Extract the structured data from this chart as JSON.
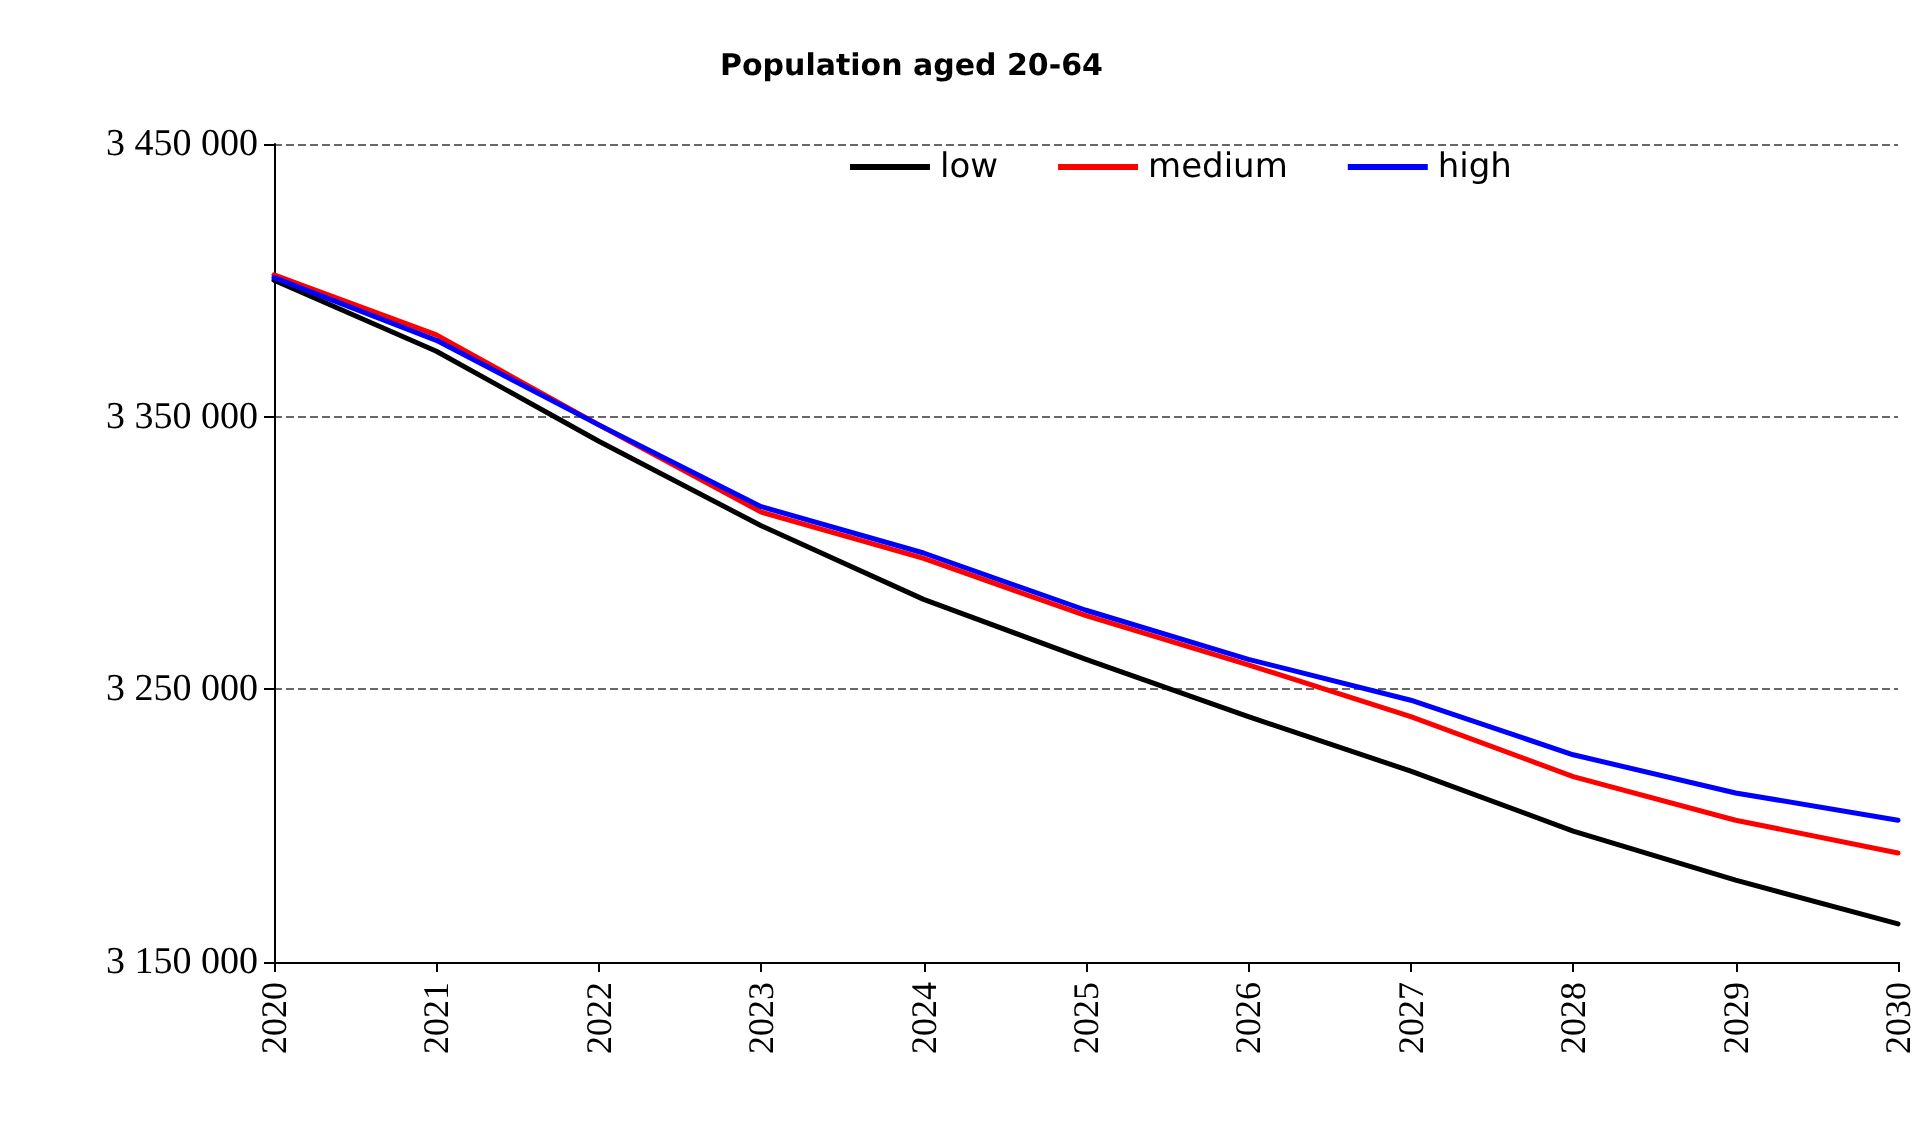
{
  "chart_data": {
    "type": "line",
    "title": "Population aged 20-64",
    "categories": [
      "2020",
      "2021",
      "2022",
      "2023",
      "2024",
      "2025",
      "2026",
      "2027",
      "2028",
      "2029",
      "2030"
    ],
    "series": [
      {
        "name": "low",
        "color": "#000000",
        "values": [
          3400000,
          3374000,
          3341000,
          3310000,
          3283000,
          3261000,
          3240000,
          3220000,
          3198000,
          3180000,
          3164000
        ]
      },
      {
        "name": "medium",
        "color": "#ff0000",
        "values": [
          3402000,
          3380000,
          3347000,
          3315000,
          3298000,
          3277000,
          3259000,
          3240000,
          3218000,
          3202000,
          3190000
        ]
      },
      {
        "name": "high",
        "color": "#0000ff",
        "values": [
          3401000,
          3378000,
          3347000,
          3317000,
          3300000,
          3279000,
          3261000,
          3246000,
          3226000,
          3212000,
          3202000
        ]
      }
    ],
    "ylim": [
      3150000,
      3450000
    ],
    "yticks": [
      {
        "value": 3150000,
        "label": "3 150 000"
      },
      {
        "value": 3250000,
        "label": "3 250 000"
      },
      {
        "value": 3350000,
        "label": "3 350 000"
      },
      {
        "value": 3450000,
        "label": "3 450 000"
      }
    ],
    "grid": "y",
    "legend": "top",
    "marker": "none",
    "line_style": "solid"
  }
}
